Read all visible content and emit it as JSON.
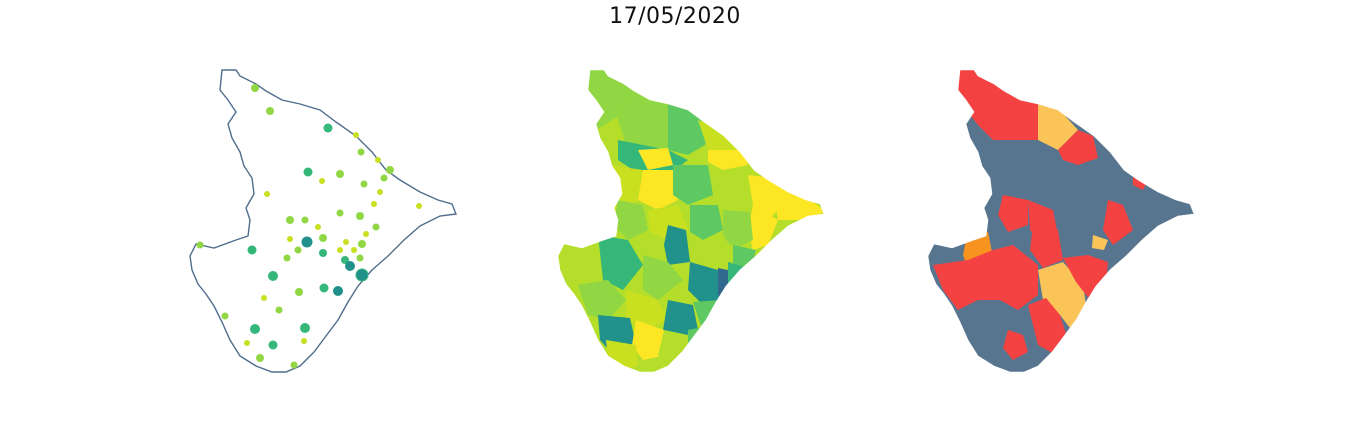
{
  "title": "17/05/2020",
  "colors": {
    "outline": "#4f6d8c",
    "viridis_dark": "#31688e",
    "viridis_teal": "#21918c",
    "viridis_green": "#35b779",
    "viridis_lime": "#90d743",
    "viridis_yellowgreen": "#c8e020",
    "viridis_yellow": "#fde725",
    "status_red": "#f44242",
    "status_orange": "#f7931e",
    "status_lightorange": "#fbc458",
    "status_slate": "#587590"
  },
  "panels": [
    {
      "id": "points",
      "kind": "proportional-points"
    },
    {
      "id": "continuous",
      "kind": "choropleth-viridis"
    },
    {
      "id": "categorical",
      "kind": "choropleth-categorical"
    }
  ]
}
